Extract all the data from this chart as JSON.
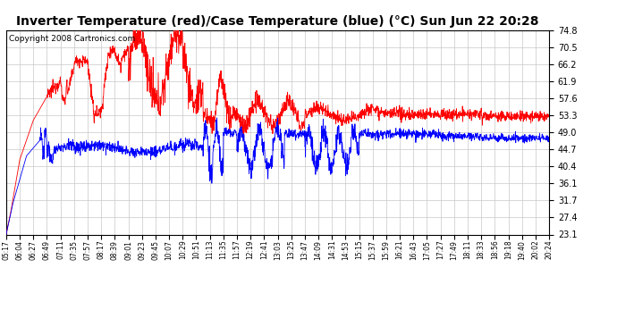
{
  "title": "Inverter Temperature (red)/Case Temperature (blue) (°C) Sun Jun 22 20:28",
  "copyright": "Copyright 2008 Cartronics.com",
  "yticks": [
    23.1,
    27.4,
    31.7,
    36.1,
    40.4,
    44.7,
    49.0,
    53.3,
    57.6,
    61.9,
    66.2,
    70.5,
    74.8
  ],
  "ylim": [
    23.1,
    74.8
  ],
  "bg_color": "#ffffff",
  "grid_color": "#c8c8c8",
  "red_color": "#ff0000",
  "blue_color": "#0000ff",
  "title_fontsize": 10,
  "copyright_fontsize": 6.5,
  "x_labels": [
    "05:17",
    "06:04",
    "06:27",
    "06:49",
    "07:11",
    "07:35",
    "07:57",
    "08:17",
    "08:39",
    "09:01",
    "09:23",
    "09:45",
    "10:07",
    "10:29",
    "10:51",
    "11:13",
    "11:35",
    "11:57",
    "12:19",
    "12:41",
    "13:03",
    "13:25",
    "13:47",
    "14:09",
    "14:31",
    "14:53",
    "15:15",
    "15:37",
    "15:59",
    "16:21",
    "16:43",
    "17:05",
    "17:27",
    "17:49",
    "18:11",
    "18:33",
    "18:56",
    "19:18",
    "19:40",
    "20:02",
    "20:24"
  ]
}
